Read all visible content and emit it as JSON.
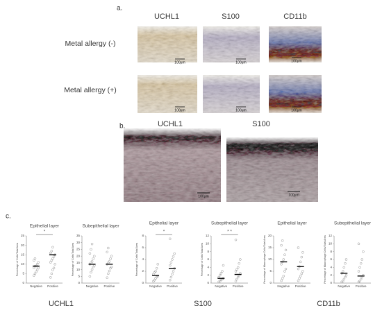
{
  "figure": {
    "panel_a": {
      "label": "a.",
      "columns": [
        "UCHL1",
        "S100",
        "CD11b"
      ],
      "rows": [
        "Metal allergy (-)",
        "Metal allergy (+)"
      ],
      "scale_bars": [
        "100μm",
        "100μm",
        "100μm",
        "100μm",
        "100μm",
        "100μm"
      ]
    },
    "panel_b": {
      "label": "b.",
      "columns": [
        "UCHL1",
        "S100"
      ],
      "scale_bars": [
        "100μm",
        "100μm"
      ]
    },
    "panel_c": {
      "label": "c.",
      "groups": [
        "UCHL1",
        "S100",
        "CD11b"
      ]
    }
  },
  "chart_data": [
    {
      "type": "scatter",
      "title": "Epithelial layer",
      "y_label": "Percentage of Cells/Total Area",
      "categories": [
        "Negative",
        "Positive"
      ],
      "ylim": [
        0,
        25
      ],
      "yticks": [
        0,
        5,
        10,
        15,
        20,
        25
      ],
      "values": [
        [
          4,
          5,
          6,
          7,
          8,
          8,
          9,
          9,
          10,
          11,
          12,
          13
        ],
        [
          3,
          5,
          7,
          8,
          10,
          11,
          12,
          13,
          14,
          15,
          16,
          17,
          19
        ]
      ],
      "means": [
        9,
        15
      ],
      "annotation": "*"
    },
    {
      "type": "scatter",
      "title": "Subepithelial layer",
      "y_label": "Percentage of Cells/Total Area",
      "categories": [
        "Negative",
        "Positive"
      ],
      "ylim": [
        0,
        35
      ],
      "yticks": [
        0,
        5,
        10,
        15,
        20,
        25,
        30,
        35
      ],
      "values": [
        [
          5,
          8,
          10,
          12,
          13,
          14,
          15,
          16,
          18,
          20,
          22,
          25,
          29
        ],
        [
          4,
          7,
          9,
          11,
          12,
          14,
          15,
          16,
          18,
          20,
          23,
          26
        ]
      ],
      "means": [
        14,
        14
      ]
    },
    {
      "type": "scatter",
      "title": "Epithelial layer",
      "y_label": "Percentage of Cells/Total Area",
      "categories": [
        "Negative",
        "Positive"
      ],
      "ylim": [
        0,
        8
      ],
      "yticks": [
        0,
        2,
        4,
        6,
        8
      ],
      "values": [
        [
          0.3,
          0.5,
          0.8,
          1,
          1.2,
          1.5,
          1.8,
          2,
          2.5,
          3.2
        ],
        [
          0.5,
          1,
          1.5,
          2,
          2.5,
          3,
          3.5,
          4,
          4.5,
          5,
          7.5
        ]
      ],
      "means": [
        1.3,
        2.5
      ],
      "annotation": "*"
    },
    {
      "type": "scatter",
      "title": "Subepithelial layer",
      "y_label": "Percentage of Cells/Total Area",
      "categories": [
        "Negative",
        "Positive"
      ],
      "ylim": [
        0,
        12
      ],
      "yticks": [
        0,
        2,
        4,
        6,
        8,
        10,
        12
      ],
      "values": [
        [
          0.3,
          0.5,
          0.8,
          1,
          1.2,
          1.5,
          2,
          2.5,
          3,
          4.5
        ],
        [
          0.5,
          1,
          1.5,
          2,
          2.5,
          3,
          3.5,
          4,
          5,
          6,
          11
        ]
      ],
      "means": [
        1.2,
        2.2
      ],
      "annotation": "* *"
    },
    {
      "type": "scatter",
      "title": "Epithelial layer",
      "y_label": "Percentage of Macrophage Cells/Total Area",
      "categories": [
        "Negative",
        "Positive"
      ],
      "ylim": [
        0,
        20
      ],
      "yticks": [
        0,
        5,
        10,
        15,
        20
      ],
      "values": [
        [
          1,
          2,
          3,
          5,
          6,
          8,
          9,
          10,
          12,
          14,
          16,
          18
        ],
        [
          1,
          2,
          3,
          4,
          5,
          6,
          7,
          9,
          11,
          13,
          15
        ]
      ],
      "means": [
        9,
        7
      ]
    },
    {
      "type": "scatter",
      "title": "Subepithelial layer",
      "y_label": "Percentage of Macrophage Cells/Total Area",
      "categories": [
        "Negative",
        "Positive"
      ],
      "ylim": [
        0,
        12
      ],
      "yticks": [
        0,
        2,
        4,
        6,
        8,
        10,
        12
      ],
      "values": [
        [
          0.3,
          0.5,
          1,
          1.5,
          2,
          2.5,
          3,
          4,
          5,
          6
        ],
        [
          0.3,
          0.5,
          1,
          1.5,
          2,
          3,
          4,
          5,
          6,
          8,
          10
        ]
      ],
      "means": [
        2.5,
        1.8
      ]
    }
  ]
}
